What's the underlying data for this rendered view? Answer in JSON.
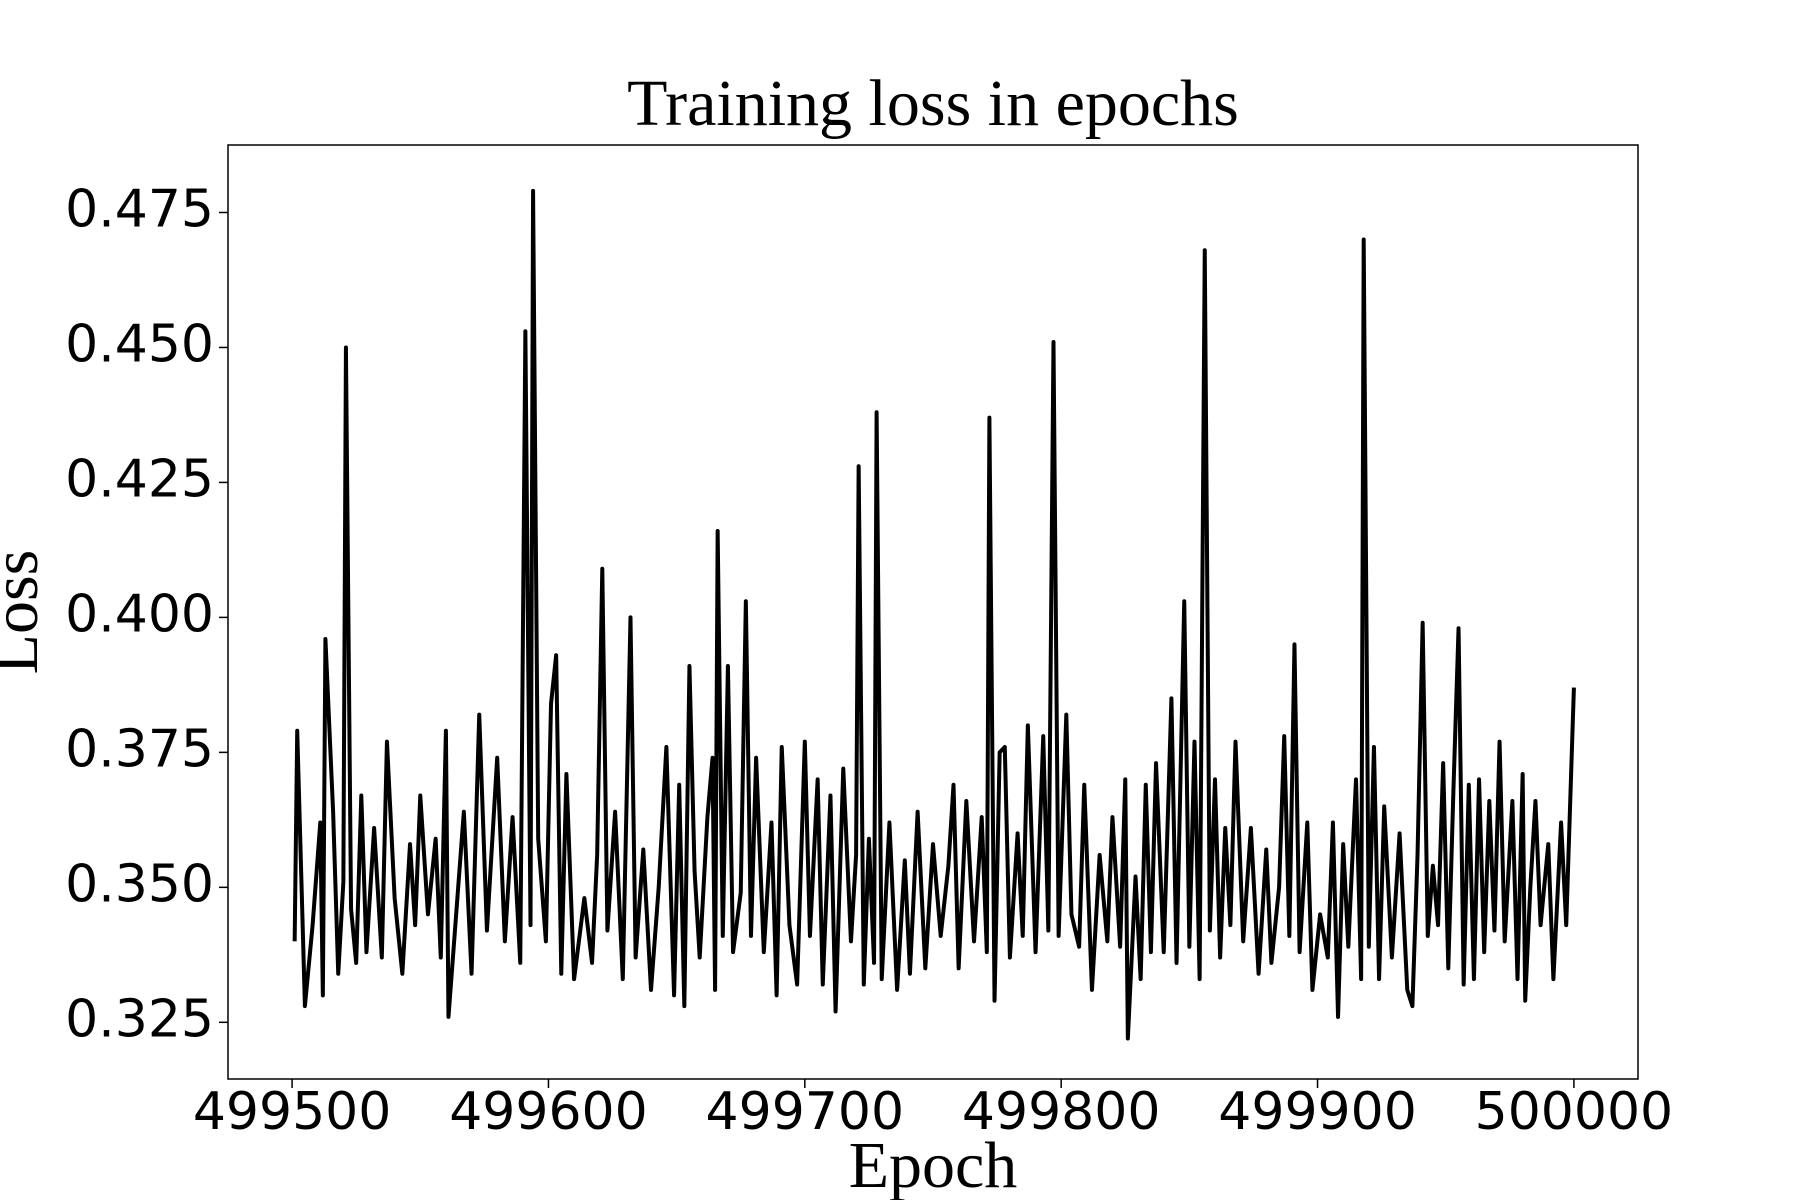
{
  "chart_data": {
    "type": "line",
    "title": "Training loss in epochs",
    "xlabel": "Epoch",
    "ylabel": "Loss",
    "color": "#000000",
    "x": [
      499501,
      499502,
      499505,
      499508,
      499511,
      499512,
      499513,
      499516,
      499518,
      499520,
      499521,
      499523,
      499525,
      499527,
      499529,
      499532,
      499535,
      499537,
      499540,
      499543,
      499546,
      499548,
      499550,
      499553,
      499556,
      499558,
      499560,
      499561,
      499564,
      499567,
      499570,
      499573,
      499576,
      499580,
      499583,
      499586,
      499589,
      499591,
      499593,
      499594,
      499596,
      499599,
      499601,
      499603,
      499605,
      499607,
      499610,
      499614,
      499617,
      499619,
      499621,
      499623,
      499626,
      499629,
      499632,
      499634,
      499637,
      499640,
      499643,
      499646,
      499649,
      499651,
      499653,
      499655,
      499657,
      499659,
      499662,
      499664,
      499665,
      499666,
      499668,
      499670,
      499672,
      499675,
      499677,
      499679,
      499681,
      499684,
      499687,
      499689,
      499691,
      499694,
      499697,
      499700,
      499702,
      499705,
      499707,
      499710,
      499712,
      499715,
      499718,
      499720,
      499721,
      499723,
      499725,
      499727,
      499728,
      499730,
      499733,
      499736,
      499739,
      499741,
      499744,
      499747,
      499750,
      499753,
      499756,
      499758,
      499760,
      499763,
      499766,
      499769,
      499771,
      499772,
      499774,
      499776,
      499778,
      499780,
      499783,
      499785,
      499787,
      499790,
      499793,
      499795,
      499797,
      499799,
      499802,
      499804,
      499807,
      499809,
      499812,
      499815,
      499818,
      499820,
      499823,
      499825,
      499826,
      499829,
      499831,
      499833,
      499835,
      499837,
      499840,
      499843,
      499845,
      499848,
      499850,
      499852,
      499854,
      499856,
      499858,
      499860,
      499862,
      499864,
      499866,
      499868,
      499871,
      499874,
      499877,
      499880,
      499882,
      499885,
      499887,
      499889,
      499891,
      499893,
      499896,
      499898,
      499901,
      499904,
      499906,
      499908,
      499910,
      499912,
      499915,
      499917,
      499918,
      499920,
      499922,
      499924,
      499926,
      499929,
      499932,
      499935,
      499937,
      499939,
      499941,
      499943,
      499945,
      499947,
      499949,
      499951,
      499953,
      499955,
      499957,
      499959,
      499961,
      499963,
      499965,
      499967,
      499969,
      499971,
      499973,
      499976,
      499978,
      499980,
      499981,
      499983,
      499985,
      499987,
      499990,
      499992,
      499995,
      499997,
      500000
    ],
    "values": [
      0.34,
      0.379,
      0.328,
      0.343,
      0.362,
      0.33,
      0.396,
      0.364,
      0.334,
      0.351,
      0.45,
      0.346,
      0.336,
      0.367,
      0.338,
      0.361,
      0.337,
      0.377,
      0.348,
      0.334,
      0.358,
      0.343,
      0.367,
      0.345,
      0.359,
      0.337,
      0.379,
      0.326,
      0.345,
      0.364,
      0.334,
      0.382,
      0.342,
      0.374,
      0.34,
      0.363,
      0.336,
      0.453,
      0.343,
      0.479,
      0.359,
      0.34,
      0.384,
      0.393,
      0.334,
      0.371,
      0.333,
      0.348,
      0.336,
      0.356,
      0.409,
      0.342,
      0.364,
      0.333,
      0.4,
      0.337,
      0.357,
      0.331,
      0.35,
      0.376,
      0.33,
      0.369,
      0.328,
      0.391,
      0.353,
      0.337,
      0.363,
      0.374,
      0.331,
      0.416,
      0.341,
      0.391,
      0.338,
      0.349,
      0.403,
      0.341,
      0.374,
      0.338,
      0.362,
      0.33,
      0.376,
      0.343,
      0.332,
      0.377,
      0.341,
      0.37,
      0.332,
      0.367,
      0.327,
      0.372,
      0.34,
      0.356,
      0.428,
      0.332,
      0.359,
      0.336,
      0.438,
      0.333,
      0.362,
      0.331,
      0.355,
      0.334,
      0.364,
      0.335,
      0.358,
      0.341,
      0.354,
      0.369,
      0.335,
      0.366,
      0.34,
      0.363,
      0.338,
      0.437,
      0.329,
      0.375,
      0.376,
      0.337,
      0.36,
      0.341,
      0.38,
      0.338,
      0.378,
      0.342,
      0.451,
      0.341,
      0.382,
      0.345,
      0.339,
      0.369,
      0.331,
      0.356,
      0.34,
      0.363,
      0.339,
      0.37,
      0.322,
      0.352,
      0.333,
      0.369,
      0.338,
      0.373,
      0.338,
      0.385,
      0.336,
      0.403,
      0.339,
      0.377,
      0.333,
      0.468,
      0.342,
      0.37,
      0.337,
      0.361,
      0.343,
      0.377,
      0.34,
      0.361,
      0.334,
      0.357,
      0.336,
      0.35,
      0.378,
      0.341,
      0.395,
      0.338,
      0.362,
      0.331,
      0.345,
      0.337,
      0.362,
      0.326,
      0.358,
      0.339,
      0.37,
      0.333,
      0.47,
      0.339,
      0.376,
      0.333,
      0.365,
      0.337,
      0.36,
      0.331,
      0.328,
      0.356,
      0.399,
      0.341,
      0.354,
      0.343,
      0.373,
      0.335,
      0.368,
      0.398,
      0.332,
      0.369,
      0.333,
      0.37,
      0.338,
      0.366,
      0.342,
      0.377,
      0.34,
      0.366,
      0.333,
      0.371,
      0.329,
      0.35,
      0.366,
      0.343,
      0.358,
      0.333,
      0.362,
      0.343,
      0.387
    ],
    "xlim": [
      499475,
      500025
    ],
    "xticks": [
      499500,
      499600,
      499700,
      499800,
      499900,
      500000
    ],
    "ylim": [
      0.3145,
      0.4875
    ],
    "yticks": [
      0.325,
      {
        "value": 0.35,
        "label": "0.350"
      },
      0.375,
      {
        "value": 0.4,
        "label": "0.400"
      },
      0.425,
      {
        "value": 0.45,
        "label": "0.450"
      },
      0.475
    ],
    "grid": false
  }
}
